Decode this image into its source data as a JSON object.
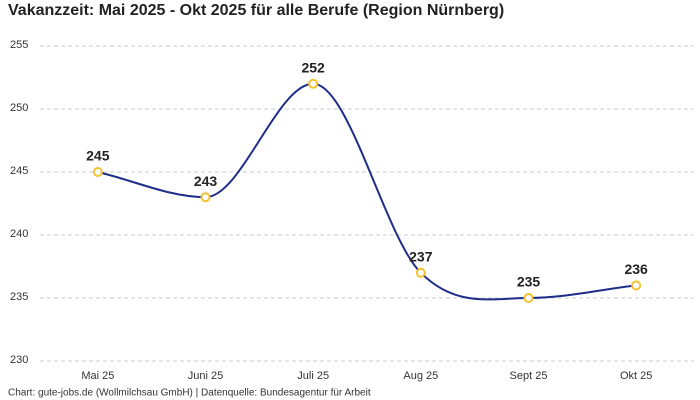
{
  "chart_data": {
    "type": "line",
    "title": "Vakanzzeit: Mai 2025 - Okt 2025 für alle Berufe (Region Nürnberg)",
    "categories": [
      "Mai 25",
      "Juni 25",
      "Juli 25",
      "Aug 25",
      "Sept 25",
      "Okt 25"
    ],
    "series": [
      {
        "name": "Vakanzzeit",
        "color": "#1f2d8a",
        "values": [
          245,
          243,
          252,
          237,
          235,
          236
        ]
      }
    ],
    "marker_color": "#f2c230",
    "ylim": [
      230,
      255
    ],
    "yticks": [
      230,
      235,
      240,
      245,
      250,
      255
    ],
    "grid": true,
    "source": "Chart: gute-jobs.de (Wollmilchsau GmbH) | Datenquelle: Bundesagentur für Arbeit"
  }
}
